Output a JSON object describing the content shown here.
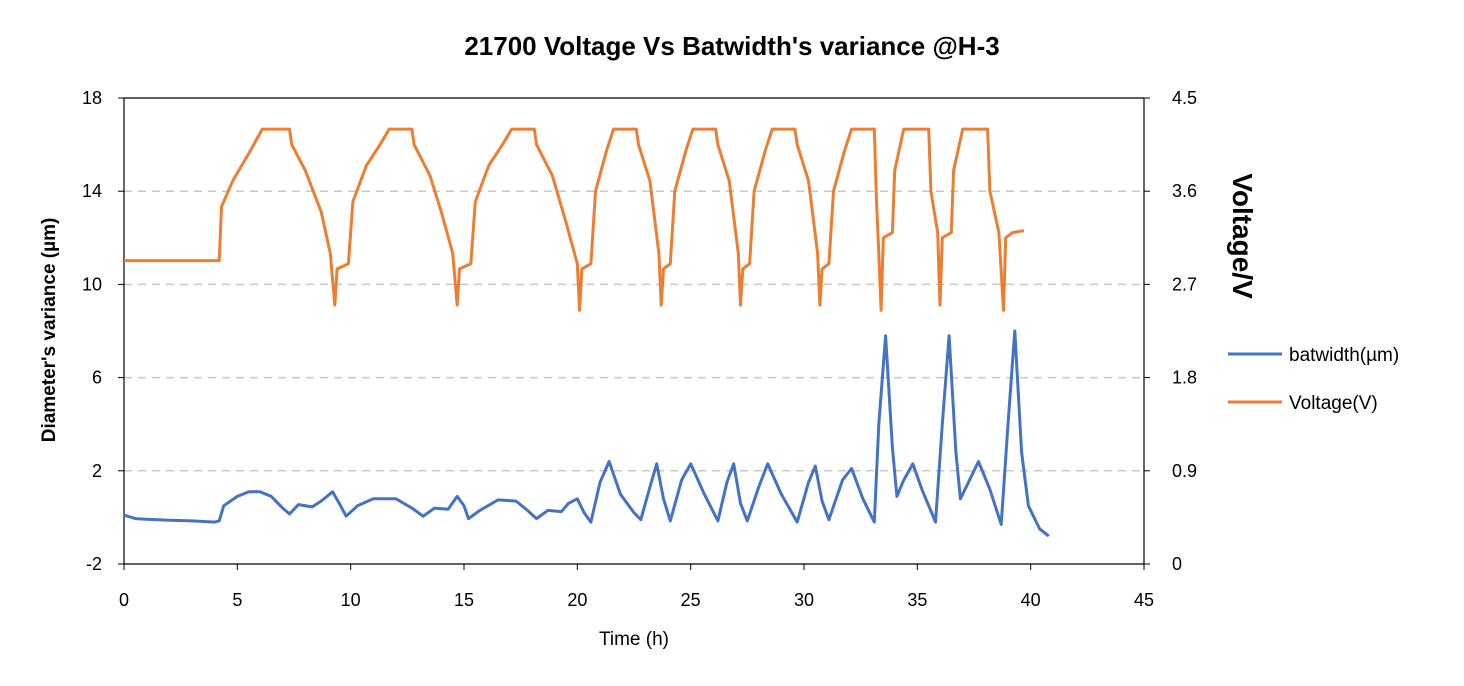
{
  "chart_data": {
    "type": "line",
    "title": "21700 Voltage Vs Batwidth's variance   @H-3",
    "xlabel": "Time (h)",
    "ylabel": "Diameter's variance (µm)",
    "y2label": "Voltage/V",
    "xlim": [
      0,
      45
    ],
    "ylim": [
      -2,
      18
    ],
    "y2lim": [
      0,
      4.5
    ],
    "xticks": [
      "0",
      "5",
      "10",
      "15",
      "20",
      "25",
      "30",
      "35",
      "40",
      "45"
    ],
    "yticks": [
      "-2",
      "2",
      "6",
      "10",
      "14",
      "18"
    ],
    "y2ticks": [
      "0",
      "0.9",
      "1.8",
      "2.7",
      "3.6",
      "4.5"
    ],
    "grid": "horizontal-dashed",
    "legend_position": "right",
    "series": [
      {
        "name": "batwidth(µm)",
        "axis": "left",
        "color": "#4472C4",
        "points": [
          [
            0,
            0.1
          ],
          [
            0.5,
            -0.05
          ],
          [
            1,
            -0.08
          ],
          [
            2,
            -0.12
          ],
          [
            3,
            -0.15
          ],
          [
            4,
            -0.2
          ],
          [
            4.2,
            -0.15
          ],
          [
            4.4,
            0.5
          ],
          [
            5,
            0.9
          ],
          [
            5.5,
            1.1
          ],
          [
            6,
            1.1
          ],
          [
            6.5,
            0.9
          ],
          [
            7,
            0.4
          ],
          [
            7.3,
            0.15
          ],
          [
            7.7,
            0.55
          ],
          [
            8.3,
            0.45
          ],
          [
            8.7,
            0.7
          ],
          [
            9.2,
            1.1
          ],
          [
            9.5,
            0.6
          ],
          [
            9.8,
            0.05
          ],
          [
            10.3,
            0.5
          ],
          [
            11,
            0.8
          ],
          [
            12,
            0.8
          ],
          [
            12.7,
            0.4
          ],
          [
            13.2,
            0.05
          ],
          [
            13.7,
            0.4
          ],
          [
            14.3,
            0.35
          ],
          [
            14.7,
            0.9
          ],
          [
            15,
            0.5
          ],
          [
            15.2,
            -0.05
          ],
          [
            15.7,
            0.3
          ],
          [
            16.5,
            0.75
          ],
          [
            17.3,
            0.7
          ],
          [
            17.8,
            0.3
          ],
          [
            18.2,
            -0.05
          ],
          [
            18.7,
            0.3
          ],
          [
            19.3,
            0.25
          ],
          [
            19.6,
            0.6
          ],
          [
            20,
            0.8
          ],
          [
            20.3,
            0.2
          ],
          [
            20.6,
            -0.2
          ],
          [
            21,
            1.5
          ],
          [
            21.4,
            2.4
          ],
          [
            21.9,
            1.0
          ],
          [
            22.5,
            0.2
          ],
          [
            22.8,
            -0.1
          ],
          [
            23.2,
            1.3
          ],
          [
            23.5,
            2.3
          ],
          [
            23.8,
            0.8
          ],
          [
            24.1,
            -0.15
          ],
          [
            24.6,
            1.6
          ],
          [
            25,
            2.3
          ],
          [
            25.6,
            1.0
          ],
          [
            26.2,
            -0.15
          ],
          [
            26.6,
            1.5
          ],
          [
            26.9,
            2.3
          ],
          [
            27.2,
            0.6
          ],
          [
            27.5,
            -0.15
          ],
          [
            28,
            1.3
          ],
          [
            28.4,
            2.3
          ],
          [
            29,
            1.0
          ],
          [
            29.7,
            -0.2
          ],
          [
            30.2,
            1.5
          ],
          [
            30.5,
            2.2
          ],
          [
            30.8,
            0.7
          ],
          [
            31.1,
            -0.1
          ],
          [
            31.7,
            1.6
          ],
          [
            32.1,
            2.1
          ],
          [
            32.6,
            0.8
          ],
          [
            33.1,
            -0.2
          ],
          [
            33.3,
            4.0
          ],
          [
            33.6,
            7.8
          ],
          [
            33.9,
            3.0
          ],
          [
            34.1,
            0.9
          ],
          [
            34.4,
            1.6
          ],
          [
            34.8,
            2.3
          ],
          [
            35.2,
            1.2
          ],
          [
            35.8,
            -0.2
          ],
          [
            36.1,
            4.0
          ],
          [
            36.4,
            7.8
          ],
          [
            36.7,
            2.8
          ],
          [
            36.9,
            0.8
          ],
          [
            37.3,
            1.6
          ],
          [
            37.7,
            2.4
          ],
          [
            38.2,
            1.2
          ],
          [
            38.7,
            -0.3
          ],
          [
            39.0,
            4.0
          ],
          [
            39.3,
            8.0
          ],
          [
            39.6,
            2.8
          ],
          [
            39.9,
            0.5
          ],
          [
            40.4,
            -0.5
          ],
          [
            40.8,
            -0.8
          ]
        ]
      },
      {
        "name": "Voltage(V)",
        "axis": "right",
        "color": "#ED7D31",
        "points": [
          [
            0,
            2.93
          ],
          [
            4.2,
            2.93
          ],
          [
            4.3,
            3.45
          ],
          [
            4.8,
            3.7
          ],
          [
            5.6,
            4.0
          ],
          [
            6.1,
            4.2
          ],
          [
            6.3,
            4.2
          ],
          [
            7.3,
            4.2
          ],
          [
            7.4,
            4.05
          ],
          [
            8,
            3.8
          ],
          [
            8.7,
            3.4
          ],
          [
            9.1,
            3.0
          ],
          [
            9.3,
            2.5
          ],
          [
            9.4,
            2.85
          ],
          [
            9.9,
            2.9
          ],
          [
            10.1,
            3.5
          ],
          [
            10.7,
            3.85
          ],
          [
            11.3,
            4.05
          ],
          [
            11.7,
            4.2
          ],
          [
            12.7,
            4.2
          ],
          [
            12.8,
            4.05
          ],
          [
            13.5,
            3.75
          ],
          [
            14.0,
            3.4
          ],
          [
            14.5,
            3.0
          ],
          [
            14.7,
            2.5
          ],
          [
            14.8,
            2.85
          ],
          [
            15.3,
            2.9
          ],
          [
            15.5,
            3.5
          ],
          [
            16.1,
            3.85
          ],
          [
            16.7,
            4.05
          ],
          [
            17.1,
            4.2
          ],
          [
            18.1,
            4.2
          ],
          [
            18.2,
            4.05
          ],
          [
            18.9,
            3.75
          ],
          [
            19.5,
            3.3
          ],
          [
            20.0,
            2.9
          ],
          [
            20.1,
            2.45
          ],
          [
            20.2,
            2.85
          ],
          [
            20.6,
            2.9
          ],
          [
            20.8,
            3.6
          ],
          [
            21.3,
            4.0
          ],
          [
            21.6,
            4.2
          ],
          [
            22.6,
            4.2
          ],
          [
            22.7,
            4.05
          ],
          [
            23.2,
            3.7
          ],
          [
            23.6,
            3.0
          ],
          [
            23.7,
            2.5
          ],
          [
            23.8,
            2.85
          ],
          [
            24.1,
            2.9
          ],
          [
            24.3,
            3.6
          ],
          [
            24.8,
            4.0
          ],
          [
            25.1,
            4.2
          ],
          [
            26.1,
            4.2
          ],
          [
            26.2,
            4.05
          ],
          [
            26.7,
            3.7
          ],
          [
            27.1,
            3.0
          ],
          [
            27.2,
            2.5
          ],
          [
            27.3,
            2.85
          ],
          [
            27.6,
            2.9
          ],
          [
            27.8,
            3.6
          ],
          [
            28.3,
            4.0
          ],
          [
            28.6,
            4.2
          ],
          [
            29.6,
            4.2
          ],
          [
            29.7,
            4.05
          ],
          [
            30.2,
            3.7
          ],
          [
            30.6,
            3.0
          ],
          [
            30.7,
            2.5
          ],
          [
            30.8,
            2.85
          ],
          [
            31.1,
            2.9
          ],
          [
            31.3,
            3.6
          ],
          [
            31.8,
            4.0
          ],
          [
            32.1,
            4.2
          ],
          [
            33.1,
            4.2
          ],
          [
            33.2,
            3.5
          ],
          [
            33.3,
            3.0
          ],
          [
            33.4,
            2.45
          ],
          [
            33.5,
            3.15
          ],
          [
            33.9,
            3.2
          ],
          [
            34.0,
            3.8
          ],
          [
            34.4,
            4.2
          ],
          [
            35.5,
            4.2
          ],
          [
            35.6,
            3.6
          ],
          [
            35.9,
            3.2
          ],
          [
            36.0,
            2.5
          ],
          [
            36.1,
            3.15
          ],
          [
            36.5,
            3.2
          ],
          [
            36.6,
            3.8
          ],
          [
            37.0,
            4.2
          ],
          [
            38.1,
            4.2
          ],
          [
            38.2,
            3.6
          ],
          [
            38.6,
            3.2
          ],
          [
            38.8,
            2.45
          ],
          [
            38.9,
            3.15
          ],
          [
            39.2,
            3.2
          ],
          [
            39.7,
            3.22
          ]
        ]
      }
    ]
  }
}
